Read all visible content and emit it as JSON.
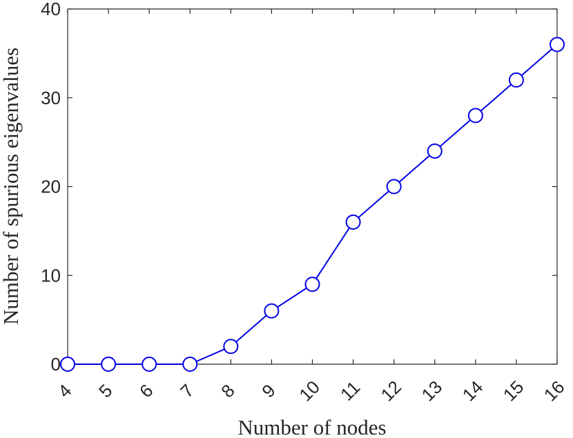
{
  "chart_data": {
    "type": "line",
    "title": "",
    "xlabel": "Number of nodes",
    "ylabel": "Number of spurious eigenvalues",
    "x": [
      4,
      5,
      6,
      7,
      8,
      9,
      10,
      11,
      12,
      13,
      14,
      15,
      16
    ],
    "xticks": [
      "4",
      "5",
      "6",
      "7",
      "8",
      "9",
      "10",
      "11",
      "12",
      "13",
      "14",
      "15",
      "16"
    ],
    "yticks": [
      "0",
      "10",
      "20",
      "30",
      "40"
    ],
    "xlim": [
      4,
      16
    ],
    "ylim": [
      0,
      40
    ],
    "grid": false,
    "legend": "none",
    "series": [
      {
        "values": [
          0,
          0,
          0,
          0,
          2,
          6,
          9,
          16,
          20,
          24,
          28,
          32,
          36
        ],
        "color": "#0000e6",
        "marker": "open-circle"
      }
    ]
  }
}
